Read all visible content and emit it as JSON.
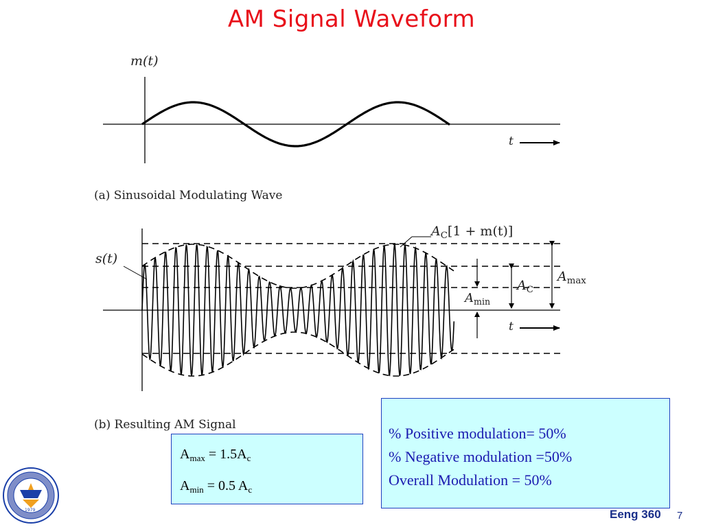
{
  "slide": {
    "title": "AM Signal Waveform",
    "page_number": "7",
    "footer": "Eeng 360"
  },
  "figure_a": {
    "ylabel": "m(t)",
    "xlabel": "t",
    "caption": "(a) Sinusoidal Modulating Wave"
  },
  "figure_b": {
    "ylabel": "s(t)",
    "xlabel": "t",
    "caption": "(b) Resulting AM Signal",
    "envelope_label": {
      "coef": "A",
      "coef_sub": "C",
      "expr": "[1 + m(t)]"
    },
    "ac_label": {
      "main": "A",
      "sub": "C"
    },
    "amax_label": {
      "main": "A",
      "sub": "max"
    },
    "amin_label": {
      "main": "A",
      "sub": "min"
    }
  },
  "amplitude_box": {
    "amax": {
      "main": "A",
      "sub": "max",
      "eq": " = 1.5A",
      "tail_sub": "c"
    },
    "amin": {
      "main": "A",
      "sub": "min",
      "eq": " =  0.5 A",
      "tail_sub": "c"
    }
  },
  "modulation_box": {
    "lines": [
      "%  Positive modulation= 50%",
      "%  Negative modulation =50%",
      "Overall Modulation = 50%"
    ]
  },
  "logo": {
    "text": "1979"
  }
}
